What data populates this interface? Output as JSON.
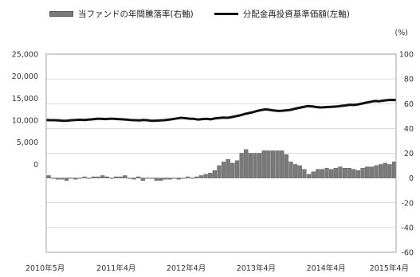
{
  "chart_data": {
    "type": "bar+line",
    "title": "",
    "legend": {
      "placement": "top",
      "items": [
        {
          "label": "当ファンドの年間騰落率(右軸)",
          "kind": "bar",
          "color": "#7a7a7a"
        },
        {
          "label": "分配金再投資基準価額(左軸)",
          "kind": "line",
          "color": "#111111"
        }
      ]
    },
    "left_axis": {
      "ticks": [
        "25,000",
        "20,000",
        "15,000",
        "10,000",
        "5,000",
        "0"
      ],
      "ylim": [
        -20000,
        25000
      ]
    },
    "right_axis": {
      "unit": "(%)",
      "ticks": [
        "100",
        "80",
        "60",
        "40",
        "20",
        "0",
        "-20",
        "-40",
        "-60"
      ],
      "ylim": [
        -60,
        100
      ]
    },
    "x_ticks": [
      "2010年5月",
      "2011年4月",
      "2012年4月",
      "2013年4月",
      "2014年4月",
      "2015年4月"
    ],
    "grid": true,
    "series": [
      {
        "name": "分配金再投資基準価額(左軸)",
        "axis": "left",
        "kind": "line",
        "values": [
          10050,
          10000,
          10000,
          9950,
          9850,
          9900,
          10000,
          10050,
          10100,
          10050,
          10150,
          10200,
          10300,
          10300,
          10250,
          10300,
          10300,
          10250,
          10200,
          10150,
          10050,
          10000,
          9950,
          10050,
          10000,
          9850,
          9900,
          9950,
          10000,
          10100,
          10250,
          10400,
          10550,
          10450,
          10350,
          10300,
          10150,
          10250,
          10300,
          10200,
          10400,
          10500,
          10600,
          10550,
          10700,
          10900,
          11100,
          11400,
          11600,
          11800,
          12100,
          12300,
          12450,
          12350,
          12200,
          12100,
          12150,
          12250,
          12350,
          12600,
          12800,
          13000,
          13200,
          13150,
          13000,
          12900,
          12950,
          13000,
          13050,
          13100,
          13250,
          13350,
          13500,
          13450,
          13600,
          13800,
          14000,
          14200,
          14350,
          14300,
          14450,
          14550,
          14600,
          14550
        ]
      },
      {
        "name": "当ファンドの年間騰落率(右軸)",
        "axis": "right",
        "kind": "bar",
        "values": [
          2,
          0,
          -1,
          -1,
          -2,
          0,
          -1,
          0,
          1,
          0,
          1,
          1,
          2,
          1,
          0,
          1,
          1,
          2,
          0,
          -1,
          1,
          -2,
          0,
          0,
          -2,
          -2,
          -1,
          -1,
          0,
          -1,
          0,
          1,
          0,
          1,
          2,
          3,
          4,
          6,
          10,
          13,
          15,
          12,
          14,
          20,
          23,
          20,
          20,
          20,
          22,
          22,
          22,
          22,
          22,
          19,
          13,
          11,
          10,
          7,
          3,
          5,
          7,
          7,
          8,
          7,
          8,
          9,
          8,
          8,
          7,
          6,
          8,
          9,
          9,
          10,
          11,
          12,
          11,
          13
        ]
      }
    ]
  }
}
